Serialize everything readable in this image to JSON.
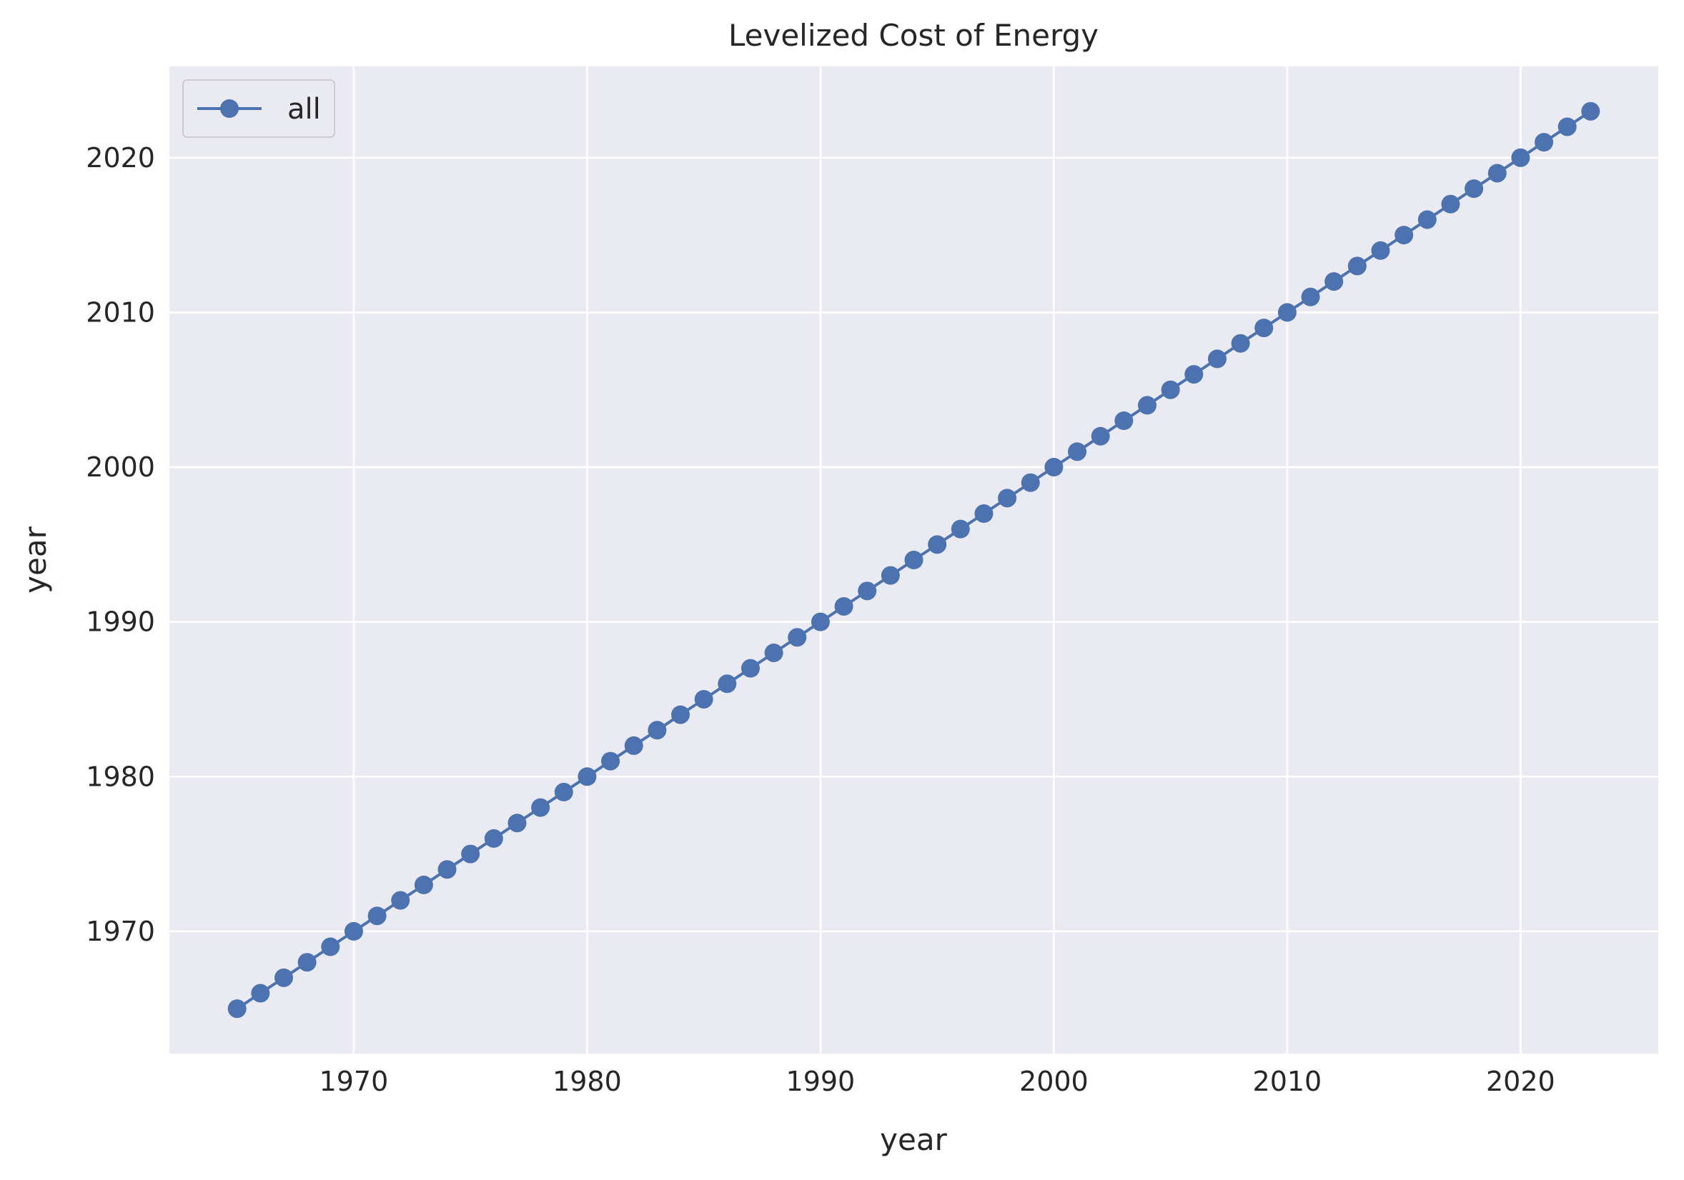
{
  "chart_data": {
    "type": "line",
    "title": "Levelized Cost of Energy",
    "xlabel": "year",
    "ylabel": "year",
    "xlim": [
      1962.1,
      2025.9
    ],
    "ylim": [
      1962.1,
      2025.9
    ],
    "xticks": [
      1970,
      1980,
      1990,
      2000,
      2010,
      2020
    ],
    "yticks": [
      1970,
      1980,
      1990,
      2000,
      2010,
      2020
    ],
    "grid": true,
    "legend_position": "top-left",
    "series": [
      {
        "name": "all",
        "color": "#4c72b0",
        "marker": "circle",
        "x": [
          1965,
          1966,
          1967,
          1968,
          1969,
          1970,
          1971,
          1972,
          1973,
          1974,
          1975,
          1976,
          1977,
          1978,
          1979,
          1980,
          1981,
          1982,
          1983,
          1984,
          1985,
          1986,
          1987,
          1988,
          1989,
          1990,
          1991,
          1992,
          1993,
          1994,
          1995,
          1996,
          1997,
          1998,
          1999,
          2000,
          2001,
          2002,
          2003,
          2004,
          2005,
          2006,
          2007,
          2008,
          2009,
          2010,
          2011,
          2012,
          2013,
          2014,
          2015,
          2016,
          2017,
          2018,
          2019,
          2020,
          2021,
          2022,
          2023
        ],
        "y": [
          1965,
          1966,
          1967,
          1968,
          1969,
          1970,
          1971,
          1972,
          1973,
          1974,
          1975,
          1976,
          1977,
          1978,
          1979,
          1980,
          1981,
          1982,
          1983,
          1984,
          1985,
          1986,
          1987,
          1988,
          1989,
          1990,
          1991,
          1992,
          1993,
          1994,
          1995,
          1996,
          1997,
          1998,
          1999,
          2000,
          2001,
          2002,
          2003,
          2004,
          2005,
          2006,
          2007,
          2008,
          2009,
          2010,
          2011,
          2012,
          2013,
          2014,
          2015,
          2016,
          2017,
          2018,
          2019,
          2020,
          2021,
          2022,
          2023
        ]
      }
    ]
  },
  "colors": {
    "plot_background": "#eaeaf2",
    "grid": "#ffffff",
    "series": "#4c72b0"
  }
}
